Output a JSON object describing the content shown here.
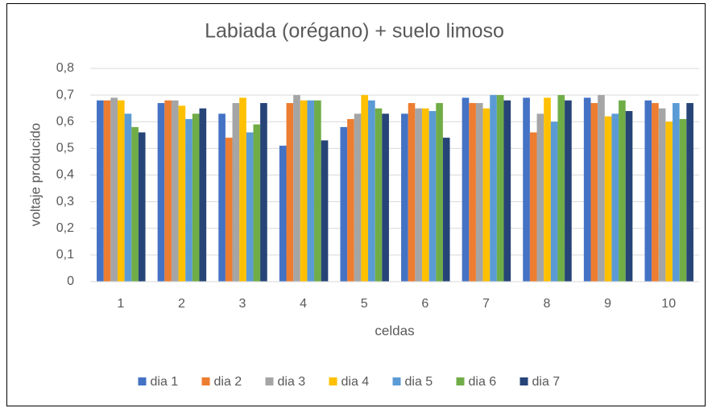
{
  "chart_data": {
    "type": "bar",
    "title": "Labiada (orégano) + suelo limoso",
    "x_label": "celdas",
    "y_label": "voltaje producido",
    "categories": [
      "1",
      "2",
      "3",
      "4",
      "5",
      "6",
      "7",
      "8",
      "9",
      "10"
    ],
    "series": [
      {
        "name": "dia 1",
        "color": "#4472c4",
        "values": [
          0.68,
          0.67,
          0.63,
          0.51,
          0.58,
          0.63,
          0.69,
          0.69,
          0.69,
          0.68
        ]
      },
      {
        "name": "dia 2",
        "color": "#ed7d31",
        "values": [
          0.68,
          0.68,
          0.54,
          0.67,
          0.61,
          0.67,
          0.67,
          0.56,
          0.67,
          0.67
        ]
      },
      {
        "name": "dia 3",
        "color": "#a5a5a5",
        "values": [
          0.69,
          0.68,
          0.67,
          0.7,
          0.63,
          0.65,
          0.67,
          0.63,
          0.7,
          0.65
        ]
      },
      {
        "name": "dia 4",
        "color": "#ffc000",
        "values": [
          0.68,
          0.66,
          0.69,
          0.68,
          0.7,
          0.65,
          0.65,
          0.69,
          0.62,
          0.6
        ]
      },
      {
        "name": "dia 5",
        "color": "#5b9bd5",
        "values": [
          0.63,
          0.61,
          0.56,
          0.68,
          0.68,
          0.64,
          0.7,
          0.6,
          0.63,
          0.67
        ]
      },
      {
        "name": "dia 6",
        "color": "#70ad47",
        "values": [
          0.58,
          0.63,
          0.59,
          0.68,
          0.65,
          0.67,
          0.7,
          0.7,
          0.68,
          0.61
        ]
      },
      {
        "name": "dia 7",
        "color": "#264478",
        "values": [
          0.56,
          0.65,
          0.67,
          0.53,
          0.63,
          0.54,
          0.68,
          0.68,
          0.64,
          0.67
        ]
      }
    ],
    "ylim": [
      0,
      0.8
    ],
    "yticks": [
      0,
      {
        "value": 0.1,
        "label": "0,1"
      },
      {
        "value": 0.2,
        "label": "0,2"
      },
      {
        "value": 0.3,
        "label": "0,3"
      },
      {
        "value": 0.4,
        "label": "0,4"
      },
      {
        "value": 0.5,
        "label": "0,5"
      },
      {
        "value": 0.6,
        "label": "0,6"
      },
      {
        "value": 0.7,
        "label": "0,7"
      },
      {
        "value": 0.8,
        "label": "0,8"
      }
    ],
    "grid": true,
    "legend": "bottom"
  }
}
